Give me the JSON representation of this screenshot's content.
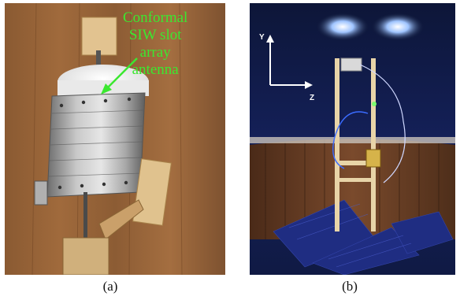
{
  "figure": {
    "panel_a": {
      "caption": "(a)",
      "annotation_lines": [
        "Conformal",
        "SIW slot",
        "array",
        "antenna"
      ],
      "annotation_color": "#3be830",
      "scene": "cylindrical-antenna-photo"
    },
    "panel_b": {
      "caption": "(b)",
      "axis_y_label": "Y",
      "axis_z_label": "Z",
      "scene": "anechoic-chamber-measurement-photo"
    }
  }
}
